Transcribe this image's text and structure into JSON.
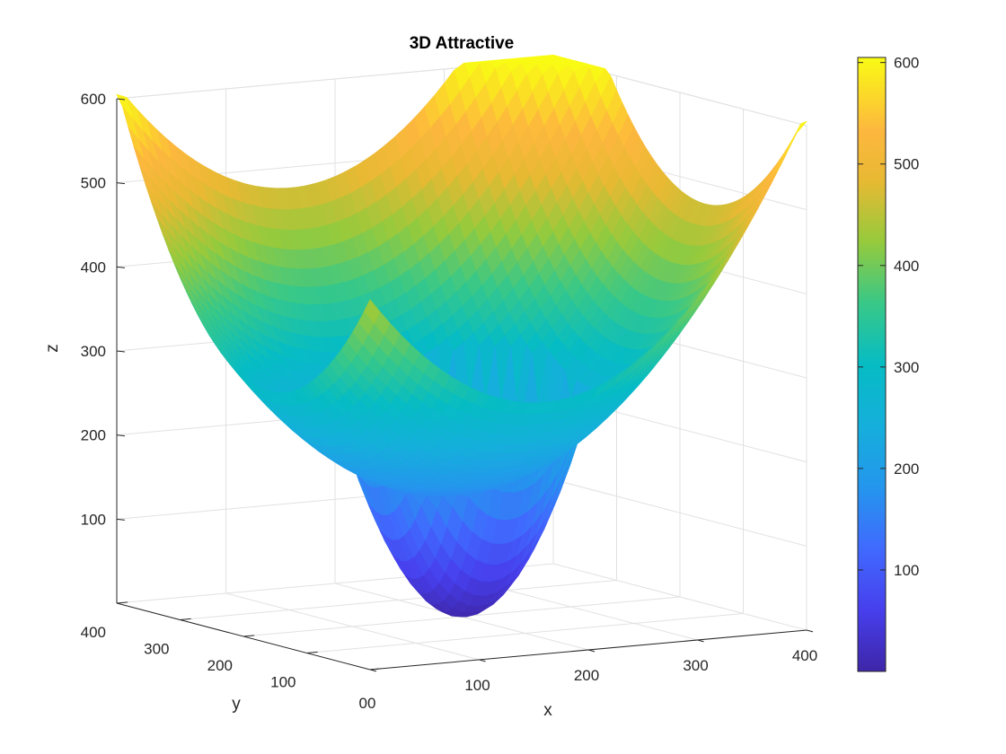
{
  "chart_data": {
    "type": "surface",
    "title": "3D Attractive",
    "xlabel": "x",
    "ylabel": "y",
    "zlabel": "z",
    "xlim": [
      0,
      400
    ],
    "ylim": [
      0,
      400
    ],
    "zlim": [
      0,
      600
    ],
    "x_ticks": [
      "0",
      "100",
      "200",
      "300",
      "400"
    ],
    "y_ticks": [
      "0",
      "100",
      "200",
      "300",
      "400"
    ],
    "z_ticks": [
      "100",
      "200",
      "300",
      "400",
      "500",
      "600"
    ],
    "colorbar_ticks": [
      "100",
      "200",
      "300",
      "400",
      "500",
      "600"
    ],
    "colorbar_range": [
      0,
      605
    ],
    "colormap": "parula",
    "grid": true,
    "surface_points": {
      "corners": [
        {
          "x": 0,
          "y": 0,
          "z": 370
        },
        {
          "x": 400,
          "y": 0,
          "z": 605
        },
        {
          "x": 0,
          "y": 400,
          "z": 605
        },
        {
          "x": 400,
          "y": 400,
          "z": 605
        }
      ],
      "edge_minima": [
        {
          "edge": "y=0",
          "x": 200,
          "z": 210
        },
        {
          "edge": "x=0",
          "y": 200,
          "z": 210
        },
        {
          "edge": "x=400",
          "y": 200,
          "z": 445
        },
        {
          "edge": "y=400",
          "x": 200,
          "z": 445
        }
      ],
      "minimum": {
        "x": 200,
        "y": 200,
        "z": 0
      },
      "inner_well_radius": 100,
      "inner_well_rim_z": 245
    }
  }
}
